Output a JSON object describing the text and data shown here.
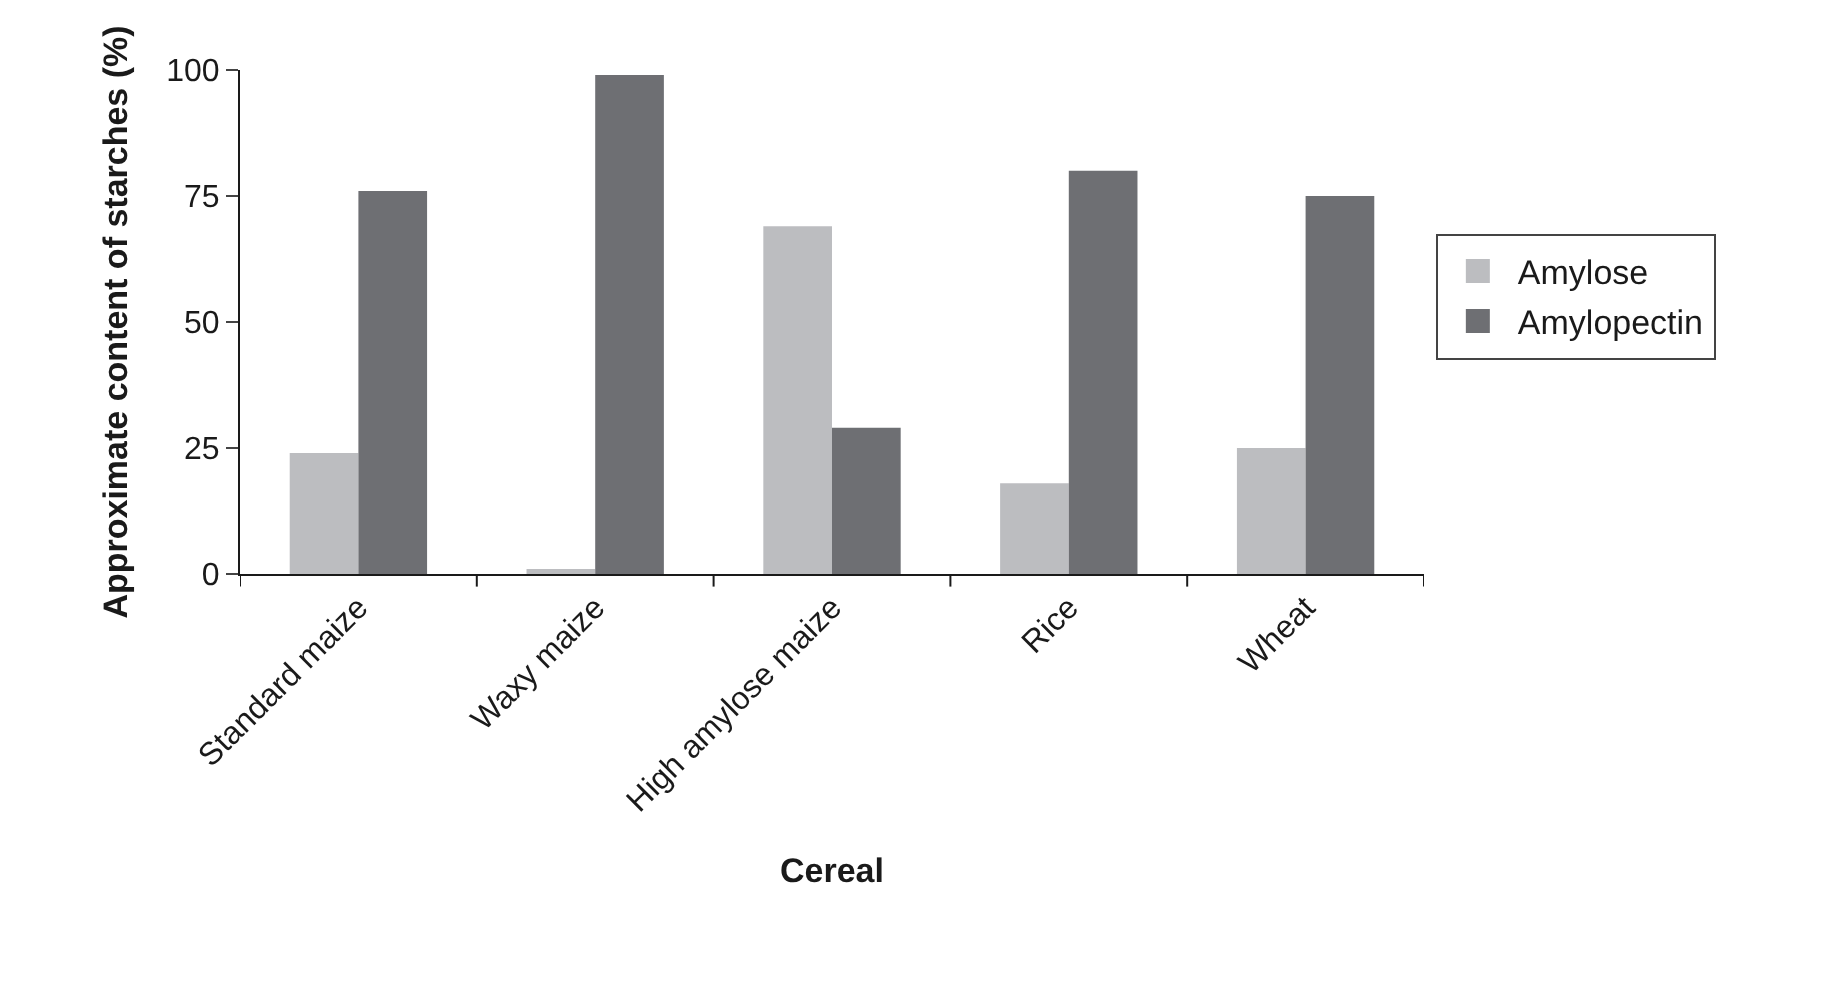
{
  "chart_data": {
    "type": "bar",
    "xlabel": "Cereal",
    "ylabel": "Approximate content of starches (%)",
    "categories": [
      "Standard maize",
      "Waxy maize",
      "High amylose maize",
      "Rice",
      "Wheat"
    ],
    "series": [
      {
        "name": "Amylose",
        "color": "#bcbdc0",
        "values": [
          24,
          1,
          69,
          18,
          25
        ]
      },
      {
        "name": "Amylopectin",
        "color": "#6e6f73",
        "values": [
          76,
          99,
          29,
          80,
          75
        ]
      }
    ],
    "ylim": [
      0,
      100
    ],
    "yticks": [
      0,
      25,
      50,
      75,
      100
    ],
    "legend": "right"
  }
}
